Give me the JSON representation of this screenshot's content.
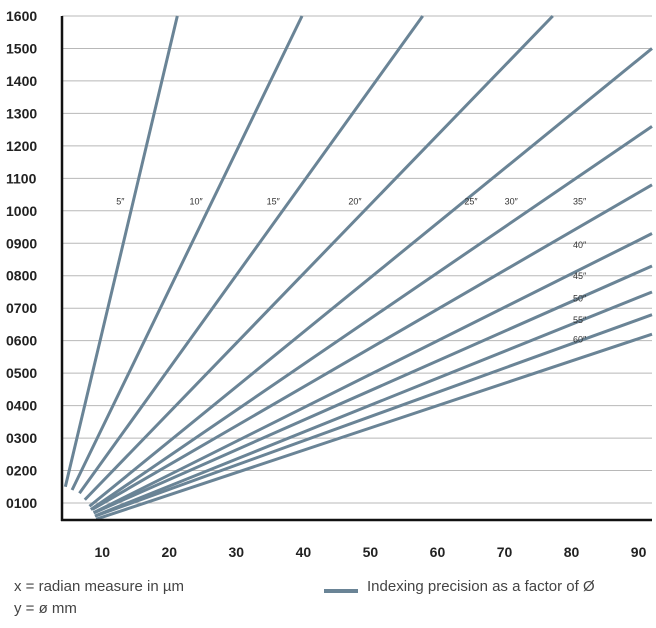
{
  "chart_data": {
    "type": "line",
    "xlim": [
      4,
      92
    ],
    "ylim": [
      0.03,
      1.6
    ],
    "x_ticks": [
      10,
      20,
      30,
      40,
      50,
      60,
      70,
      80,
      90
    ],
    "x_tick_labels": [
      "10",
      "20",
      "30",
      "40",
      "50",
      "60",
      "70",
      "80",
      "90"
    ],
    "y_ticks": [
      0.1,
      0.2,
      0.3,
      0.4,
      0.5,
      0.6,
      0.7,
      0.8,
      0.9,
      1.0,
      1.1,
      1.2,
      1.3,
      1.4,
      1.5,
      1.6
    ],
    "y_tick_labels": [
      "0100",
      "0200",
      "0300",
      "0400",
      "0500",
      "0600",
      "0700",
      "0800",
      "0900",
      "1000",
      "1100",
      "1200",
      "1300",
      "1400",
      "1500",
      "1600"
    ],
    "grid": "horizontal",
    "line_color": "#6a8496",
    "series": [
      {
        "name": "5″",
        "x": [
          4.5,
          21.2
        ],
        "y": [
          0.15,
          1.6
        ]
      },
      {
        "name": "10″",
        "x": [
          5.5,
          39.8
        ],
        "y": [
          0.14,
          1.6
        ]
      },
      {
        "name": "15″",
        "x": [
          6.6,
          57.8
        ],
        "y": [
          0.13,
          1.6
        ]
      },
      {
        "name": "20″",
        "x": [
          7.4,
          77.2
        ],
        "y": [
          0.11,
          1.6
        ]
      },
      {
        "name": "25″",
        "x": [
          8.1,
          92
        ],
        "y": [
          0.09,
          1.5
        ]
      },
      {
        "name": "30″",
        "x": [
          8.3,
          92
        ],
        "y": [
          0.08,
          1.26
        ]
      },
      {
        "name": "35″",
        "x": [
          8.5,
          92
        ],
        "y": [
          0.08,
          1.08
        ]
      },
      {
        "name": "40″",
        "x": [
          8.7,
          92
        ],
        "y": [
          0.07,
          0.93
        ]
      },
      {
        "name": "45″",
        "x": [
          8.8,
          92
        ],
        "y": [
          0.07,
          0.83
        ]
      },
      {
        "name": "50″",
        "x": [
          8.9,
          92
        ],
        "y": [
          0.06,
          0.75
        ]
      },
      {
        "name": "55″",
        "x": [
          9.0,
          92
        ],
        "y": [
          0.06,
          0.68
        ]
      },
      {
        "name": "60″",
        "x": [
          9.1,
          92
        ],
        "y": [
          0.05,
          0.62
        ]
      }
    ],
    "annotations": [
      {
        "text": "5″",
        "x": 12.7,
        "y": 1.02
      },
      {
        "text": "10″",
        "x": 24.0,
        "y": 1.02
      },
      {
        "text": "15″",
        "x": 35.5,
        "y": 1.02
      },
      {
        "text": "20″",
        "x": 47.7,
        "y": 1.02
      },
      {
        "text": "25″",
        "x": 65.0,
        "y": 1.02
      },
      {
        "text": "30″",
        "x": 71.0,
        "y": 1.02
      },
      {
        "text": "35″",
        "x": 81.2,
        "y": 1.02
      },
      {
        "text": "40″",
        "x": 81.2,
        "y": 0.885
      },
      {
        "text": "45″",
        "x": 81.2,
        "y": 0.79
      },
      {
        "text": "50″",
        "x": 81.2,
        "y": 0.72
      },
      {
        "text": "55″",
        "x": 81.2,
        "y": 0.655
      },
      {
        "text": "60″",
        "x": 81.2,
        "y": 0.595
      }
    ]
  },
  "legend": {
    "x_caption": "x = radian measure in µm",
    "y_caption": "y = ø mm",
    "series_caption": "Indexing precision as a factor of Ø"
  }
}
